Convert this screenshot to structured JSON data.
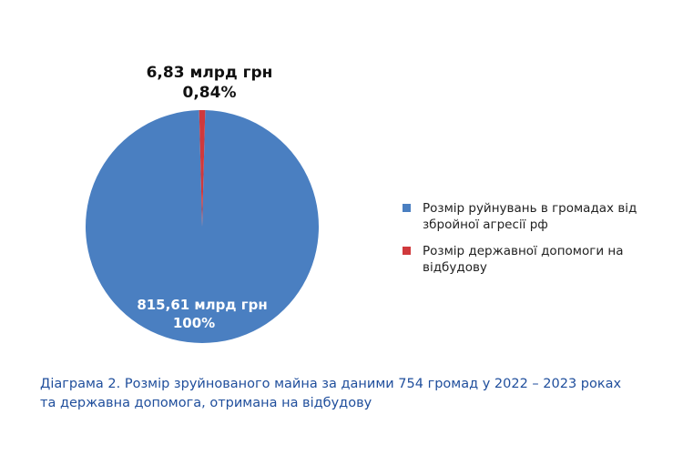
{
  "chart_data": {
    "type": "pie",
    "series": [
      {
        "name": "Розмір руйнувань в громадах від збройної агресії рф",
        "value": 815.61,
        "value_label": "815,61 млрд грн",
        "percent_label": "100%",
        "color": "#4a7fc1"
      },
      {
        "name": "Розмір державної допомоги на відбудову",
        "value": 6.83,
        "value_label": "6,83 млрд грн",
        "percent_label": "0,84%",
        "color": "#d0393c"
      }
    ],
    "legend_position": "right"
  },
  "caption": {
    "line1": "Діаграма 2. Розмір зруйнованого майна за даними 754 громад у 2022 – 2023 роках",
    "line2": "та державна допомога, отримана на відбудову"
  }
}
